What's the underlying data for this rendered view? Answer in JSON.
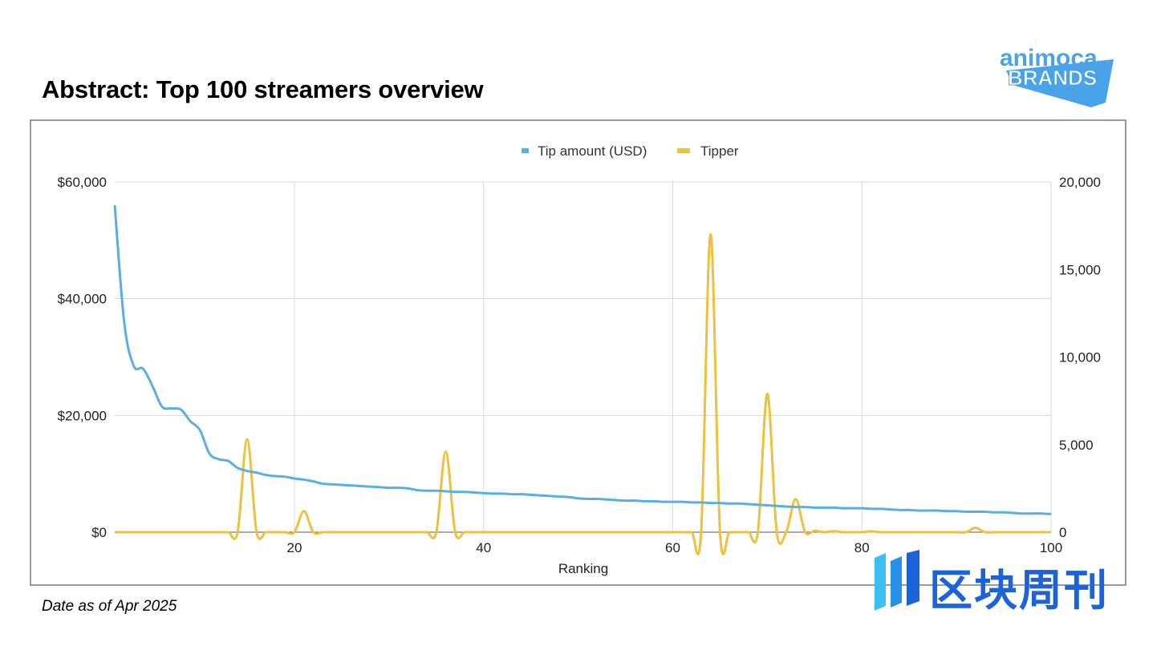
{
  "page": {
    "title": "Abstract: Top 100 streamers overview",
    "footnote": "Date as of Apr 2025"
  },
  "logo": {
    "line1": "animoca",
    "line2": "BRANDS",
    "color": "#4aa3e8"
  },
  "watermark": {
    "text": "区块周刊",
    "color": "#1a63d8"
  },
  "chart_data": {
    "type": "line",
    "title": "",
    "xlabel": "Ranking",
    "ylabel": "",
    "x_ticks": [
      "20",
      "40",
      "60",
      "80",
      "100"
    ],
    "xlim": [
      1,
      100
    ],
    "left_axis": {
      "ylim": [
        0,
        60000
      ],
      "ticks": [
        "$0",
        "$20,000",
        "$40,000",
        "$60,000"
      ],
      "tick_values": [
        0,
        20000,
        40000,
        60000
      ]
    },
    "right_axis": {
      "ylim": [
        0,
        20000
      ],
      "ticks": [
        "0",
        "5,000",
        "10,000",
        "15,000",
        "20,000"
      ],
      "tick_values": [
        0,
        5000,
        10000,
        15000,
        20000
      ]
    },
    "grid": true,
    "legend_position": "top-center",
    "x": [
      1,
      2,
      3,
      4,
      5,
      6,
      7,
      8,
      9,
      10,
      11,
      12,
      13,
      14,
      15,
      16,
      17,
      18,
      19,
      20,
      21,
      22,
      23,
      24,
      25,
      26,
      27,
      28,
      29,
      30,
      31,
      32,
      33,
      34,
      35,
      36,
      37,
      38,
      39,
      40,
      41,
      42,
      43,
      44,
      45,
      46,
      47,
      48,
      49,
      50,
      51,
      52,
      53,
      54,
      55,
      56,
      57,
      58,
      59,
      60,
      61,
      62,
      63,
      64,
      65,
      66,
      67,
      68,
      69,
      70,
      71,
      72,
      73,
      74,
      75,
      76,
      77,
      78,
      79,
      80,
      81,
      82,
      83,
      84,
      85,
      86,
      87,
      88,
      89,
      90,
      91,
      92,
      93,
      94,
      95,
      96,
      97,
      98,
      99,
      100
    ],
    "series": [
      {
        "name": "Tip amount (USD)",
        "axis": "left",
        "color": "#5aaee6",
        "values": [
          56000,
          36000,
          28500,
          28000,
          25000,
          21500,
          21200,
          21000,
          19000,
          17500,
          13500,
          12500,
          12200,
          11000,
          10500,
          10200,
          9800,
          9600,
          9500,
          9200,
          9000,
          8700,
          8300,
          8200,
          8100,
          8000,
          7900,
          7800,
          7700,
          7600,
          7600,
          7500,
          7200,
          7100,
          7100,
          7000,
          6900,
          6900,
          6800,
          6700,
          6600,
          6600,
          6500,
          6500,
          6400,
          6300,
          6200,
          6100,
          6000,
          5800,
          5700,
          5700,
          5600,
          5500,
          5400,
          5400,
          5300,
          5300,
          5200,
          5200,
          5200,
          5100,
          5100,
          5000,
          5000,
          4900,
          4900,
          4800,
          4700,
          4600,
          4500,
          4400,
          4300,
          4300,
          4200,
          4200,
          4200,
          4100,
          4100,
          4100,
          4000,
          4000,
          3900,
          3800,
          3800,
          3700,
          3700,
          3700,
          3600,
          3600,
          3500,
          3500,
          3500,
          3400,
          3400,
          3300,
          3200,
          3200,
          3200,
          3100
        ]
      },
      {
        "name": "Tipper",
        "axis": "right",
        "color": "#f0c03c",
        "values": [
          0,
          0,
          0,
          0,
          0,
          0,
          0,
          0,
          0,
          0,
          0,
          0,
          0,
          0,
          5300,
          0,
          0,
          0,
          0,
          0,
          1200,
          0,
          0,
          0,
          0,
          0,
          0,
          0,
          0,
          0,
          0,
          0,
          0,
          0,
          0,
          4600,
          0,
          0,
          0,
          0,
          0,
          0,
          0,
          0,
          0,
          0,
          0,
          0,
          0,
          0,
          0,
          0,
          0,
          0,
          0,
          0,
          0,
          0,
          0,
          0,
          0,
          0,
          0,
          17000,
          0,
          0,
          0,
          0,
          0,
          7900,
          0,
          0,
          1900,
          0,
          80,
          0,
          60,
          0,
          0,
          0,
          50,
          0,
          0,
          0,
          0,
          0,
          0,
          0,
          0,
          0,
          0,
          250,
          0,
          0,
          0,
          0,
          0,
          0,
          0,
          0
        ]
      }
    ]
  }
}
